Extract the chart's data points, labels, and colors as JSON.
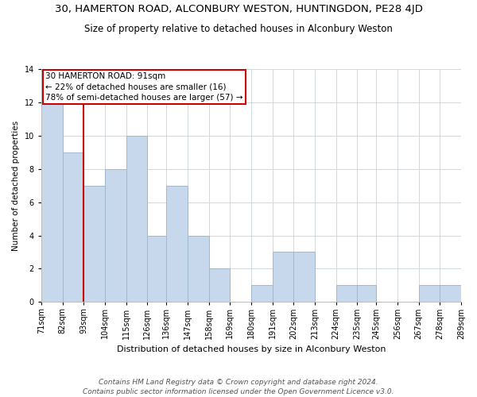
{
  "title_line1": "30, HAMERTON ROAD, ALCONBURY WESTON, HUNTINGDON, PE28 4JD",
  "title_line2": "Size of property relative to detached houses in Alconbury Weston",
  "xlabel": "Distribution of detached houses by size in Alconbury Weston",
  "ylabel": "Number of detached properties",
  "bin_edges": [
    71,
    82,
    93,
    104,
    115,
    126,
    136,
    147,
    158,
    169,
    180,
    191,
    202,
    213,
    224,
    235,
    245,
    256,
    267,
    278,
    289
  ],
  "bin_counts": [
    12,
    9,
    7,
    8,
    10,
    4,
    7,
    4,
    2,
    0,
    1,
    3,
    3,
    0,
    1,
    1,
    0,
    0,
    1,
    1
  ],
  "bar_color": "#c8d8ec",
  "bar_edge_color": "#a0b8d0",
  "property_line_x": 93,
  "property_line_color": "#cc0000",
  "annotation_line1": "30 HAMERTON ROAD: 91sqm",
  "annotation_line2": "← 22% of detached houses are smaller (16)",
  "annotation_line3": "78% of semi-detached houses are larger (57) →",
  "annotation_box_color": "#ffffff",
  "annotation_box_edge_color": "#cc0000",
  "ylim": [
    0,
    14
  ],
  "yticks": [
    0,
    2,
    4,
    6,
    8,
    10,
    12,
    14
  ],
  "tick_labels": [
    "71sqm",
    "82sqm",
    "93sqm",
    "104sqm",
    "115sqm",
    "126sqm",
    "136sqm",
    "147sqm",
    "158sqm",
    "169sqm",
    "180sqm",
    "191sqm",
    "202sqm",
    "213sqm",
    "224sqm",
    "235sqm",
    "245sqm",
    "256sqm",
    "267sqm",
    "278sqm",
    "289sqm"
  ],
  "footer_line1": "Contains HM Land Registry data © Crown copyright and database right 2024.",
  "footer_line2": "Contains public sector information licensed under the Open Government Licence v3.0.",
  "background_color": "#ffffff",
  "grid_color": "#d0d8e0",
  "title1_fontsize": 9.5,
  "title2_fontsize": 8.5,
  "xlabel_fontsize": 8,
  "ylabel_fontsize": 7.5,
  "tick_fontsize": 7,
  "footer_fontsize": 6.5
}
